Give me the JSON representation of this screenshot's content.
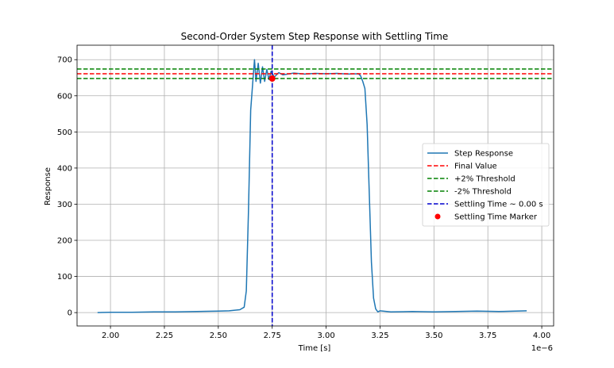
{
  "chart_data": {
    "type": "line",
    "title": "Second-Order System Step Response with Settling Time",
    "xlabel": "Time [s]",
    "ylabel": "Response",
    "x_scale_label": "1e−6",
    "xlim": [
      1.845,
      4.055
    ],
    "ylim": [
      -37,
      740
    ],
    "x_ticks": [
      2.0,
      2.25,
      2.5,
      2.75,
      3.0,
      3.25,
      3.5,
      3.75,
      4.0
    ],
    "x_tick_labels": [
      "2.00",
      "2.25",
      "2.50",
      "2.75",
      "3.00",
      "3.25",
      "3.50",
      "3.75",
      "4.00"
    ],
    "y_ticks": [
      0,
      100,
      200,
      300,
      400,
      500,
      600,
      700
    ],
    "y_tick_labels": [
      "0",
      "100",
      "200",
      "300",
      "400",
      "500",
      "600",
      "700"
    ],
    "grid": true,
    "legend_position": "center-right",
    "series": [
      {
        "name": "Step Response",
        "color": "#1f77b4",
        "style": "solid",
        "x": [
          1.94,
          2.0,
          2.1,
          2.2,
          2.3,
          2.4,
          2.5,
          2.55,
          2.6,
          2.62,
          2.63,
          2.64,
          2.65,
          2.66,
          2.668,
          2.675,
          2.685,
          2.695,
          2.705,
          2.715,
          2.725,
          2.735,
          2.745,
          2.76,
          2.78,
          2.8,
          2.85,
          2.9,
          2.95,
          3.0,
          3.05,
          3.1,
          3.15,
          3.16,
          3.17,
          3.18,
          3.19,
          3.2,
          3.21,
          3.22,
          3.23,
          3.24,
          3.25,
          3.3,
          3.4,
          3.5,
          3.6,
          3.7,
          3.8,
          3.93
        ],
        "y": [
          0,
          1,
          1,
          2,
          2,
          3,
          4,
          5,
          8,
          15,
          60,
          280,
          560,
          640,
          700,
          640,
          690,
          635,
          680,
          640,
          673,
          645,
          668,
          652,
          664,
          658,
          663,
          660,
          662,
          661,
          662,
          660,
          661,
          655,
          640,
          620,
          520,
          330,
          140,
          40,
          10,
          2,
          5,
          2,
          3,
          2,
          3,
          4,
          3,
          5
        ]
      },
      {
        "name": "Final Value",
        "color": "#ff0000",
        "style": "dashed",
        "y_const": 661
      },
      {
        "name": "+2% Threshold",
        "color": "#008000",
        "style": "dashed",
        "y_const": 674.2
      },
      {
        "name": "-2% Threshold",
        "color": "#008000",
        "style": "dashed",
        "y_const": 647.8
      },
      {
        "name": "Settling Time ~ 0.00 s",
        "color": "#0000cd",
        "style": "dashed",
        "x_const": 2.75
      },
      {
        "name": "Settling Time Marker",
        "color": "#ff0000",
        "style": "marker",
        "x": 2.75,
        "y": 647.8
      }
    ]
  }
}
